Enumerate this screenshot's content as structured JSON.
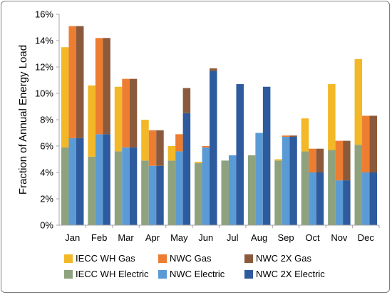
{
  "chart_data": {
    "type": "bar",
    "title": "",
    "xlabel": "",
    "ylabel": "Fraction of Annual Energy Load",
    "ylim": [
      0,
      16
    ],
    "yticks": [
      "0%",
      "2%",
      "4%",
      "6%",
      "8%",
      "10%",
      "12%",
      "14%",
      "16%"
    ],
    "grid": false,
    "legend_position": "bottom",
    "categories": [
      "Jan",
      "Feb",
      "Mar",
      "Apr",
      "May",
      "Jun",
      "Jul",
      "Aug",
      "Sep",
      "Oct",
      "Nov",
      "Dec"
    ],
    "groups": [
      {
        "electric": {
          "name": "IECC WH Electric",
          "color": "#8fa27e",
          "values": [
            5.9,
            5.2,
            5.6,
            4.9,
            4.9,
            4.7,
            4.9,
            5.3,
            4.9,
            5.6,
            5.7,
            6.1
          ]
        },
        "gas": {
          "name": "IECC WH Gas",
          "color": "#f2b827",
          "values": [
            7.6,
            5.4,
            4.9,
            3.1,
            1.1,
            0.1,
            0.0,
            0.0,
            0.1,
            2.5,
            5.0,
            6.5
          ]
        }
      },
      {
        "electric": {
          "name": "NWC Electric",
          "color": "#5b9bd5",
          "values": [
            6.6,
            6.9,
            5.9,
            4.5,
            5.6,
            5.9,
            5.3,
            7.0,
            6.7,
            4.0,
            3.4,
            4.0
          ]
        },
        "gas": {
          "name": "NWC Gas",
          "color": "#ed7d31",
          "values": [
            8.5,
            7.3,
            5.2,
            2.7,
            1.3,
            0.1,
            0.0,
            0.0,
            0.1,
            1.8,
            3.0,
            4.3
          ]
        }
      },
      {
        "electric": {
          "name": "NWC 2X Electric",
          "color": "#2e5a9e",
          "values": [
            6.6,
            6.9,
            5.9,
            4.5,
            8.5,
            11.7,
            10.7,
            10.5,
            6.7,
            4.0,
            3.4,
            4.0
          ]
        },
        "gas": {
          "name": "NWC 2X Gas",
          "color": "#8b5a3c",
          "values": [
            8.5,
            7.3,
            5.2,
            2.7,
            1.9,
            0.2,
            0.0,
            0.0,
            0.1,
            1.8,
            3.0,
            4.3
          ]
        }
      }
    ],
    "legend": [
      {
        "label": "IECC WH Gas",
        "color": "#f2b827"
      },
      {
        "label": "NWC Gas",
        "color": "#ed7d31"
      },
      {
        "label": "NWC 2X Gas",
        "color": "#8b5a3c"
      },
      {
        "label": "IECC WH Electric",
        "color": "#8fa27e"
      },
      {
        "label": "NWC Electric",
        "color": "#5b9bd5"
      },
      {
        "label": "NWC 2X Electric",
        "color": "#2e5a9e"
      }
    ],
    "axis_color": "#a6a6a6"
  }
}
